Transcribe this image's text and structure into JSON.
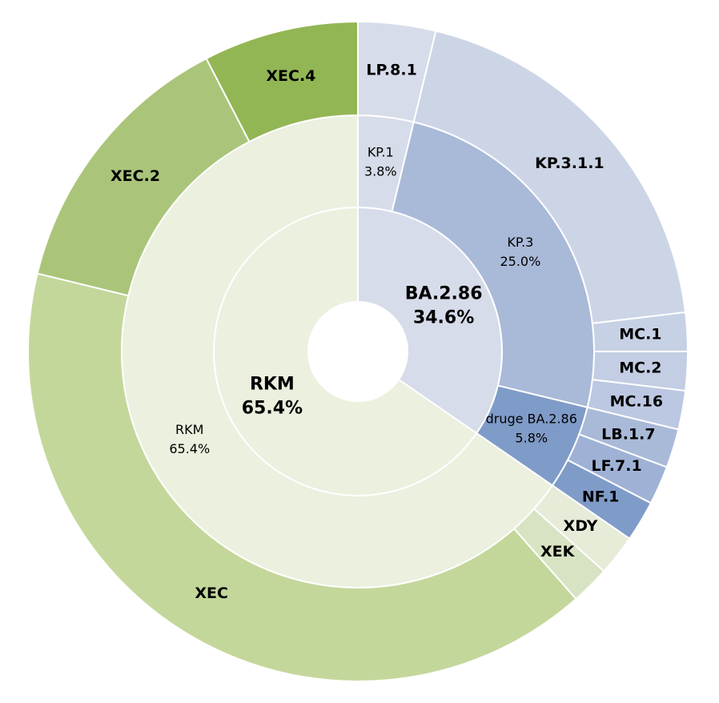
{
  "chart_data": {
    "type": "sunburst",
    "rings": [
      {
        "categories": [
          "BA.2.86",
          "RKM"
        ],
        "values": [
          34.6,
          65.4
        ],
        "value_labels": [
          "34.6%",
          "65.4%"
        ],
        "colors": [
          "#d6dce9",
          "#ebf0df"
        ]
      },
      {
        "categories": [
          "KP.1",
          "KP.3",
          "druge BA.2.86",
          "RKM"
        ],
        "values": [
          3.8,
          25.0,
          5.8,
          65.4
        ],
        "value_labels": [
          "3.8%",
          "25.0%",
          "5.8%",
          "65.4%"
        ],
        "colors": [
          "#d6dce9",
          "#a9b9d8",
          "#7f9bc8",
          "#ebf0df"
        ]
      },
      {
        "categories": [
          "LP.8.1",
          "KP.3.1.1",
          "MC.1",
          "MC.2",
          "MC.16",
          "LB.1.7",
          "LF.7.1",
          "NF.1",
          "XDY",
          "XEK",
          "XEC",
          "XEC.2",
          "XEC.4"
        ],
        "values": [
          3.8,
          19.3,
          1.9,
          1.9,
          1.9,
          1.9,
          1.9,
          2.0,
          2.0,
          1.9,
          40.3,
          13.6,
          7.6
        ],
        "colors": [
          "#d6dce9",
          "#ccd5e6",
          "#c7d1e5",
          "#c3cde3",
          "#bcc8e2",
          "#a9b9d8",
          "#9fb2d6",
          "#7f9bc8",
          "#e6ecd8",
          "#d7e3c2",
          "#c4d79b",
          "#aac57a",
          "#93b654"
        ]
      }
    ]
  }
}
